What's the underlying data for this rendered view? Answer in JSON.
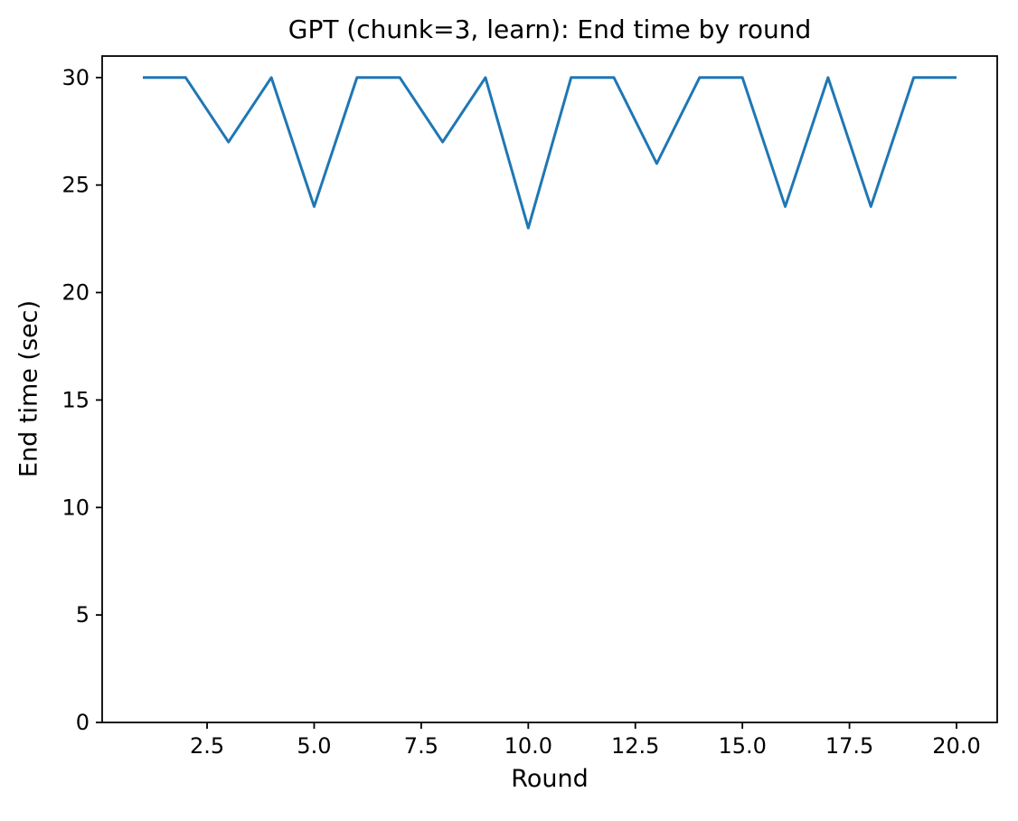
{
  "chart_data": {
    "type": "line",
    "title": "GPT (chunk=3, learn): End time by round",
    "xlabel": "Round",
    "ylabel": "End time (sec)",
    "x": [
      1,
      2,
      3,
      4,
      5,
      6,
      7,
      8,
      9,
      10,
      11,
      12,
      13,
      14,
      15,
      16,
      17,
      18,
      19,
      20
    ],
    "y": [
      30,
      30,
      27,
      30,
      24,
      30,
      30,
      27,
      30,
      23,
      30,
      30,
      26,
      30,
      30,
      24,
      30,
      24,
      30,
      30
    ],
    "series_name": "End time",
    "xlim": [
      0.05,
      20.95
    ],
    "ylim": [
      0,
      31
    ],
    "xticks": [
      2.5,
      5.0,
      7.5,
      10.0,
      12.5,
      15.0,
      17.5,
      20.0
    ],
    "xtick_labels": [
      "2.5",
      "5.0",
      "7.5",
      "10.0",
      "12.5",
      "15.0",
      "17.5",
      "20.0"
    ],
    "yticks": [
      0,
      5,
      10,
      15,
      20,
      25,
      30
    ],
    "ytick_labels": [
      "0",
      "5",
      "10",
      "15",
      "20",
      "25",
      "30"
    ],
    "line_color": "#1f77b4",
    "line_width": 3,
    "axes_color": "#000000",
    "grid": false,
    "legend": null
  }
}
